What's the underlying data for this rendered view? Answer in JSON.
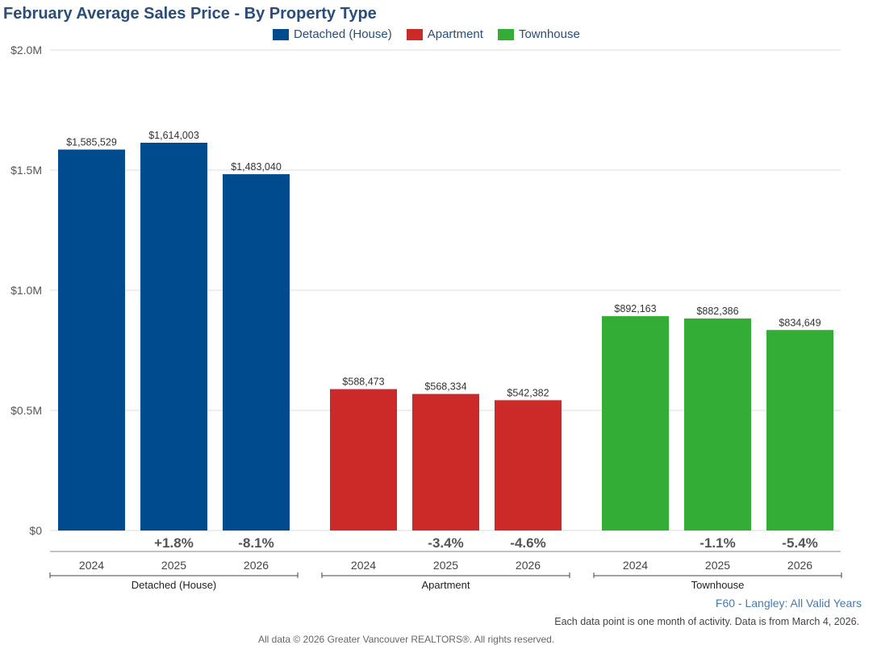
{
  "chart_data": {
    "type": "bar",
    "title": "February Average Sales Price - By Property Type",
    "ylim": [
      0,
      2000000
    ],
    "y_ticks": [
      {
        "value": 0,
        "label": "$0"
      },
      {
        "value": 500000,
        "label": "$0.5M"
      },
      {
        "value": 1000000,
        "label": "$1.0M"
      },
      {
        "value": 1500000,
        "label": "$1.5M"
      },
      {
        "value": 2000000,
        "label": "$2.0M"
      }
    ],
    "grid": true,
    "legend_position": "top",
    "groups": [
      {
        "name": "Detached (House)",
        "color": "#004b8d",
        "bars": [
          {
            "year": "2024",
            "value": 1585529,
            "label": "$1,585,529",
            "change": ""
          },
          {
            "year": "2025",
            "value": 1614003,
            "label": "$1,614,003",
            "change": "+1.8%"
          },
          {
            "year": "2026",
            "value": 1483040,
            "label": "$1,483,040",
            "change": "-8.1%"
          }
        ]
      },
      {
        "name": "Apartment",
        "color": "#cc2929",
        "bars": [
          {
            "year": "2024",
            "value": 588473,
            "label": "$588,473",
            "change": ""
          },
          {
            "year": "2025",
            "value": 568334,
            "label": "$568,334",
            "change": "-3.4%"
          },
          {
            "year": "2026",
            "value": 542382,
            "label": "$542,382",
            "change": "-4.6%"
          }
        ]
      },
      {
        "name": "Townhouse",
        "color": "#33ad36",
        "bars": [
          {
            "year": "2024",
            "value": 892163,
            "label": "$892,163",
            "change": ""
          },
          {
            "year": "2025",
            "value": 882386,
            "label": "$882,386",
            "change": "-1.1%"
          },
          {
            "year": "2026",
            "value": 834649,
            "label": "$834,649",
            "change": "-5.4%"
          }
        ]
      }
    ]
  },
  "legend": [
    {
      "label": "Detached (House)",
      "color": "#004b8d"
    },
    {
      "label": "Apartment",
      "color": "#cc2929"
    },
    {
      "label": "Townhouse",
      "color": "#33ad36"
    }
  ],
  "footer": {
    "source": "F60 - Langley: All Valid Years",
    "note": "Each data point is one month of activity. Data is from March 4, 2026.",
    "copyright": "All data © 2026 Greater Vancouver REALTORS®. All rights reserved."
  }
}
